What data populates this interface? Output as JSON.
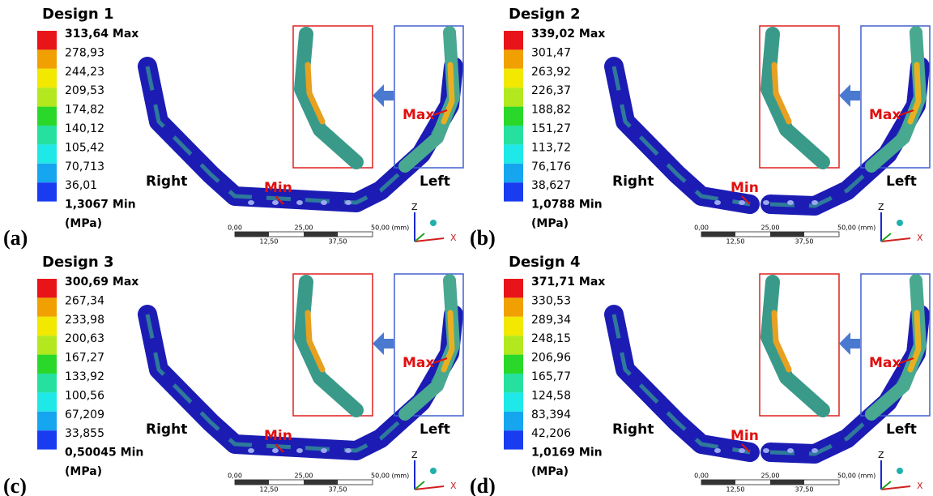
{
  "panels": [
    {
      "label": "(a)",
      "title": "Design 1",
      "legend": [
        "313,64 Max",
        "278,93",
        "244,23",
        "209,53",
        "174,82",
        "140,12",
        "105,42",
        "70,713",
        "36,01",
        "1,3067 Min"
      ],
      "unit": "(MPa)",
      "right": "Right",
      "left": "Left",
      "min": "Min",
      "max": "Max",
      "scale": [
        "0,00",
        "25,00",
        "50,00 (mm)",
        "12,50",
        "37,50"
      ],
      "axis_z": "Z",
      "axis_x": "X"
    },
    {
      "label": "(b)",
      "title": "Design 2",
      "legend": [
        "339,02 Max",
        "301,47",
        "263,92",
        "226,37",
        "188,82",
        "151,27",
        "113,72",
        "76,176",
        "38,627",
        "1,0788 Min"
      ],
      "unit": "(MPa)",
      "right": "Right",
      "left": "Left",
      "min": "Min",
      "max": "Max",
      "scale": [
        "0,00",
        "25,00",
        "50,00 (mm)",
        "12,50",
        "37,50"
      ],
      "axis_z": "Z",
      "axis_x": "X"
    },
    {
      "label": "(c)",
      "title": "Design 3",
      "legend": [
        "300,69 Max",
        "267,34",
        "233,98",
        "200,63",
        "167,27",
        "133,92",
        "100,56",
        "67,209",
        "33,855",
        "0,50045 Min"
      ],
      "unit": "(MPa)",
      "right": "Right",
      "left": "Left",
      "min": "Min",
      "max": "Max",
      "scale": [
        "0,00",
        "25,00",
        "50,00 (mm)",
        "12,50",
        "37,50"
      ],
      "axis_z": "Z",
      "axis_x": "X"
    },
    {
      "label": "(d)",
      "title": "Design 4",
      "legend": [
        "371,71 Max",
        "330,53",
        "289,34",
        "248,15",
        "206,96",
        "165,77",
        "124,58",
        "83,394",
        "42,206",
        "1,0169 Min"
      ],
      "unit": "(MPa)",
      "right": "Right",
      "left": "Left",
      "min": "Min",
      "max": "Max",
      "scale": [
        "0,00",
        "25,00",
        "50,00 (mm)",
        "12,50",
        "37,50"
      ],
      "axis_z": "Z",
      "axis_x": "X"
    }
  ]
}
